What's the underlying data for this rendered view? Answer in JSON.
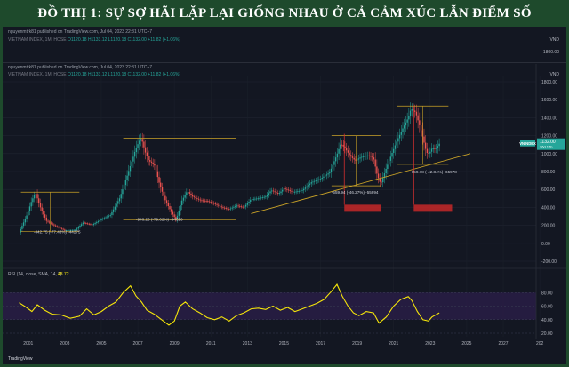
{
  "title": "ĐỒ THỊ 1: SỰ SỢ HÃI LẶP LẠI GIỐNG NHAU Ở CẢ CẢM XÚC LẪN ĐIỂM SỐ",
  "published": "nguyenmtrk81 published on TradingView.com, Jul 04, 2023 22:31 UTC+7",
  "symbol": "VIETNAM INDEX, 1M, HOSE",
  "ohlc": "O1120.18 H1133.12 L1120.18 C1132.00 +11.82 (+1.06%)",
  "currency": "VND",
  "ghost_tick": "1800.00",
  "price_label": "VNINDEX",
  "price_value": "1132.00",
  "price_time": "26d 17h",
  "rsi_label": "RSI (14, close, SMA, 14, 2)",
  "rsi_value": "48.72",
  "footer": "TradingView",
  "chart_data": [
    {
      "type": "line",
      "ylim": [
        0,
        1800
      ],
      "yticks": [
        "1800.00",
        "1600.00",
        "1400.00",
        "1200.00",
        "1000.00",
        "800.00",
        "600.00",
        "400.00",
        "200.00",
        "0.00",
        "-200.00"
      ],
      "xticks": [
        "2001",
        "2003",
        "2005",
        "2007",
        "2009",
        "2011",
        "2013",
        "2015",
        "2017",
        "2019",
        "2021",
        "2023",
        "2025",
        "2027",
        "202"
      ],
      "series": [
        {
          "x": [
            2000.5,
            2000.9,
            2001.2,
            2001.4,
            2001.7,
            2002.0,
            2002.5,
            2003.0,
            2003.6,
            2004.0,
            2004.5,
            2005.0,
            2005.5,
            2006.0,
            2006.3,
            2006.6,
            2006.9,
            2007.1,
            2007.2,
            2007.4,
            2007.6,
            2007.9,
            2008.2,
            2008.5,
            2008.8,
            2009.1,
            2009.4,
            2009.7,
            2010.0,
            2010.4,
            2010.8,
            2011.2,
            2011.6,
            2012.0,
            2012.4,
            2012.8,
            2013.2,
            2013.6,
            2014.0,
            2014.3,
            2014.7,
            2015.0,
            2015.5,
            2016.0,
            2016.5,
            2017.0,
            2017.5,
            2017.9,
            2018.1,
            2018.3,
            2018.6,
            2018.9,
            2019.2,
            2019.6,
            2019.9,
            2020.1,
            2020.3,
            2020.6,
            2020.9,
            2021.2,
            2021.5,
            2021.8,
            2021.95,
            2022.2,
            2022.5,
            2022.8,
            2022.95,
            2023.1,
            2023.3,
            2023.5
          ],
          "values": [
            120,
            300,
            480,
            560,
            380,
            250,
            190,
            145,
            150,
            230,
            205,
            265,
            315,
            500,
            680,
            870,
            1060,
            1150,
            1170,
            1020,
            920,
            880,
            650,
            480,
            360,
            260,
            470,
            580,
            520,
            480,
            470,
            440,
            400,
            380,
            420,
            400,
            490,
            500,
            520,
            590,
            550,
            610,
            570,
            590,
            680,
            720,
            790,
            990,
            1110,
            1070,
            980,
            920,
            960,
            980,
            950,
            760,
            660,
            840,
            1000,
            1150,
            1280,
            1400,
            1500,
            1460,
            1260,
            1010,
            1000,
            1060,
            1050,
            1110
          ]
        }
      ],
      "annotations": [
        "-442.75 (-77.48%) -44275",
        "-946.26 (-79.62%) -94626",
        "-559.94 (-46.27%) -55994",
        "-659.78 (-42.84%) -65978"
      ]
    },
    {
      "type": "line",
      "title": "RSI (14, close, SMA, 14, 2)",
      "ylim": [
        20,
        100
      ],
      "yticks": [
        "80.00",
        "60.00",
        "40.00",
        "20.00"
      ],
      "series": [
        {
          "x": [
            2000.5,
            2000.9,
            2001.2,
            2001.5,
            2001.9,
            2002.3,
            2002.8,
            2003.3,
            2003.8,
            2004.2,
            2004.6,
            2005.0,
            2005.4,
            2005.8,
            2006.2,
            2006.6,
            2006.9,
            2007.2,
            2007.5,
            2007.9,
            2008.3,
            2008.7,
            2009.0,
            2009.3,
            2009.6,
            2010.0,
            2010.4,
            2010.8,
            2011.2,
            2011.6,
            2012.0,
            2012.4,
            2012.8,
            2013.2,
            2013.6,
            2014.0,
            2014.4,
            2014.8,
            2015.2,
            2015.6,
            2016.0,
            2016.4,
            2016.8,
            2017.2,
            2017.6,
            2017.9,
            2018.2,
            2018.5,
            2018.8,
            2019.1,
            2019.5,
            2019.9,
            2020.2,
            2020.6,
            2021.0,
            2021.4,
            2021.8,
            2022.0,
            2022.3,
            2022.6,
            2022.9,
            2023.1,
            2023.5
          ],
          "values": [
            65,
            58,
            52,
            62,
            54,
            48,
            47,
            42,
            45,
            56,
            47,
            52,
            60,
            66,
            80,
            90,
            75,
            66,
            54,
            48,
            40,
            32,
            38,
            60,
            66,
            56,
            50,
            43,
            40,
            44,
            38,
            46,
            50,
            56,
            57,
            55,
            60,
            54,
            58,
            52,
            56,
            60,
            64,
            70,
            82,
            92,
            74,
            60,
            50,
            46,
            52,
            50,
            35,
            44,
            60,
            70,
            74,
            68,
            52,
            40,
            38,
            44,
            50
          ]
        }
      ]
    }
  ]
}
